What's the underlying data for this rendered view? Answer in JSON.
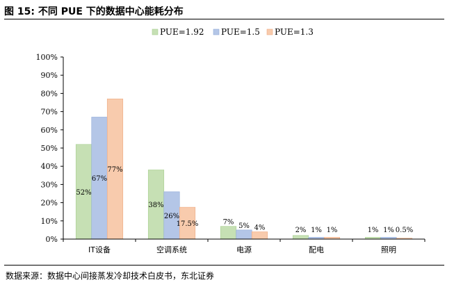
{
  "figure_title": "图  15:  不同 PUE 下的数据中心能耗分布",
  "source": "数据来源：数据中心间接蒸发冷却技术白皮书，东北证券",
  "chart_data": {
    "type": "bar",
    "categories": [
      "IT设备",
      "空调系统",
      "电源",
      "配电",
      "照明"
    ],
    "series": [
      {
        "name": "PUE=1.92",
        "color": "#c6e0b4",
        "stroke": "#a9cf91",
        "values": [
          52,
          38,
          7,
          2,
          1
        ],
        "labels": [
          "52%",
          "38%",
          "7%",
          "2%",
          "1%"
        ]
      },
      {
        "name": "PUE=1.5",
        "color": "#b4c6e7",
        "stroke": "#93acd9",
        "values": [
          67,
          26,
          5,
          1,
          1
        ],
        "labels": [
          "67%",
          "26%",
          "5%",
          "1%",
          "1%"
        ]
      },
      {
        "name": "PUE=1.3",
        "color": "#f8cbad",
        "stroke": "#eeaa82",
        "values": [
          77,
          17.5,
          4,
          1,
          0.5
        ],
        "labels": [
          "77%",
          "17.5%",
          "4%",
          "1%",
          "0.5%"
        ]
      }
    ],
    "yticks": [
      "0%",
      "10%",
      "20%",
      "30%",
      "40%",
      "50%",
      "60%",
      "70%",
      "80%",
      "90%",
      "100%"
    ],
    "ylim": [
      0,
      100
    ],
    "legend_position": "top-center",
    "grid": false
  }
}
